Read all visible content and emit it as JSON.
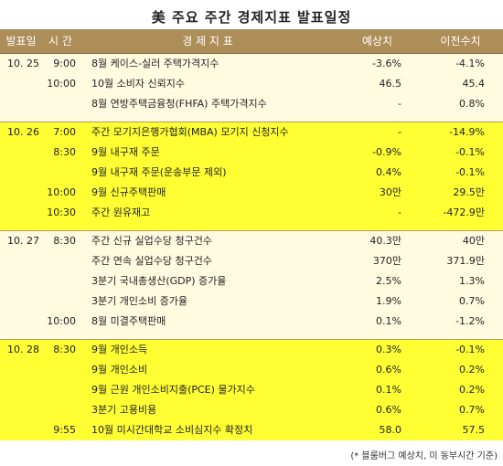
{
  "title": "美 주요 주간 경제지표 발표일정",
  "columns": [
    "발표일",
    "시 간",
    "경 제 지 표",
    "예상치",
    "이전수치"
  ],
  "rows": [
    {
      "date": "10. 25",
      "time": "9:00",
      "indicator": "8월 케이스-실러 주택가격지수",
      "forecast": "-3.6%",
      "previous": "-4.1%",
      "group": "a",
      "first": true
    },
    {
      "date": "",
      "time": "10:00",
      "indicator": "10월 소비자 신뢰지수",
      "forecast": "46.5",
      "previous": "45.4",
      "group": "a"
    },
    {
      "date": "",
      "time": "",
      "indicator": "8월 연방주택금융청(FHFA) 주택가격지수",
      "forecast": "-",
      "previous": "0.8%",
      "group": "a",
      "gap_after": true
    },
    {
      "date": "10. 26",
      "time": "7:00",
      "indicator": "주간 모기지은행가협회(MBA) 모기지 신청지수",
      "forecast": "-",
      "previous": "-14.9%",
      "group": "b",
      "first": true
    },
    {
      "date": "",
      "time": "8:30",
      "indicator": "9월 내구재 주문",
      "forecast": "-0.9%",
      "previous": "-0.1%",
      "group": "b"
    },
    {
      "date": "",
      "time": "",
      "indicator": "9월 내구재 주문(운송부문 제외)",
      "forecast": "0.4%",
      "previous": "-0.1%",
      "group": "b"
    },
    {
      "date": "",
      "time": "10:00",
      "indicator": "9월 신규주택판매",
      "forecast": "30만",
      "previous": "29.5만",
      "group": "b"
    },
    {
      "date": "",
      "time": "10:30",
      "indicator": "주간 원유재고",
      "forecast": "-",
      "previous": "-472.9만",
      "group": "b",
      "gap_after": true
    },
    {
      "date": "10. 27",
      "time": "8:30",
      "indicator": "주간 신규 실업수당 청구건수",
      "forecast": "40.3만",
      "previous": "40만",
      "group": "a",
      "first": true
    },
    {
      "date": "",
      "time": "",
      "indicator": "주간 연속 실업수당 청구건수",
      "forecast": "370만",
      "previous": "371.9만",
      "group": "a"
    },
    {
      "date": "",
      "time": "",
      "indicator": "3분기 국내총생산(GDP) 증가율",
      "forecast": "2.5%",
      "previous": "1.3%",
      "group": "a"
    },
    {
      "date": "",
      "time": "",
      "indicator": "3분기 개인소비 증가율",
      "forecast": "1.9%",
      "previous": "0.7%",
      "group": "a"
    },
    {
      "date": "",
      "time": "10:00",
      "indicator": "8월 미결주택판매",
      "forecast": "0.1%",
      "previous": "-1.2%",
      "group": "a",
      "gap_after": true
    },
    {
      "date": "10. 28",
      "time": "8:30",
      "indicator": "9월 개인소득",
      "forecast": "0.3%",
      "previous": "-0.1%",
      "group": "b",
      "first": true
    },
    {
      "date": "",
      "time": "",
      "indicator": "9월 개인소비",
      "forecast": "0.6%",
      "previous": "0.2%",
      "group": "b"
    },
    {
      "date": "",
      "time": "",
      "indicator": "9월 근원 개인소비지출(PCE) 물가지수",
      "forecast": "0.1%",
      "previous": "0.2%",
      "group": "b"
    },
    {
      "date": "",
      "time": "",
      "indicator": "3분기 고용비용",
      "forecast": "0.6%",
      "previous": "0.7%",
      "group": "b"
    },
    {
      "date": "",
      "time": "9:55",
      "indicator": "10월 미시간대학교 소비심지수 확정치",
      "forecast": "58.0",
      "previous": "57.5",
      "group": "b"
    }
  ],
  "source_note": "(* 블룸버그 예상치, 미 동부시간 기준)",
  "colors": {
    "header_bg": "#ad8d58",
    "group_a_bg": "#fffbe0",
    "group_b_bg": "#ffff33"
  }
}
